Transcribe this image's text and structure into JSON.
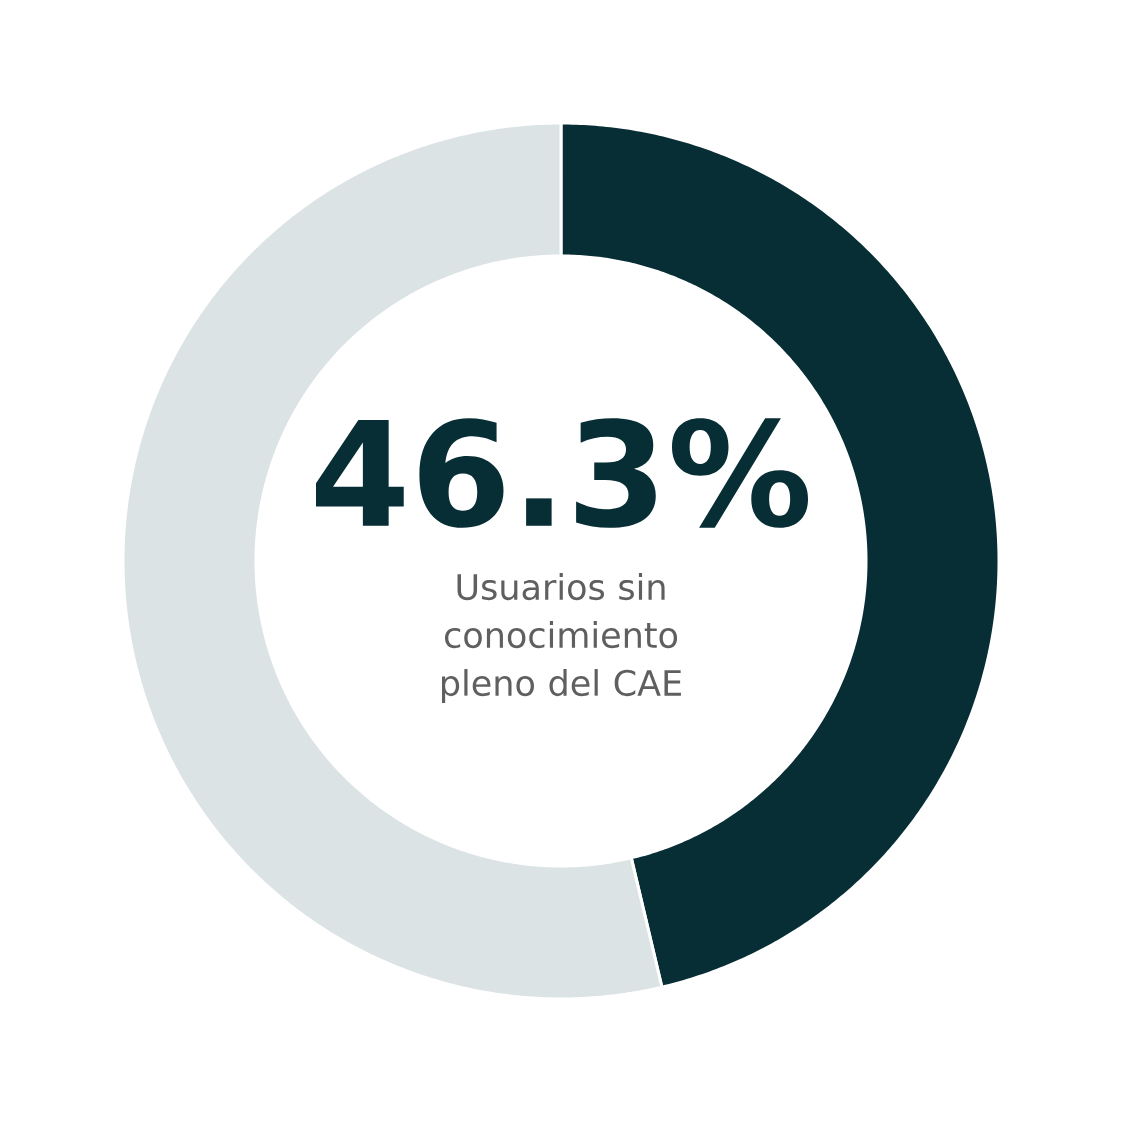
{
  "chart_data": {
    "type": "donut",
    "categories": [
      null,
      null
    ],
    "values": [
      46.3,
      53.7
    ],
    "value_labels": [
      "46.3%",
      null
    ],
    "colors": [
      "#072e35",
      "#dce3e5"
    ],
    "annotations": [
      "Usuarios sin conocimiento pleno del CAE"
    ]
  }
}
